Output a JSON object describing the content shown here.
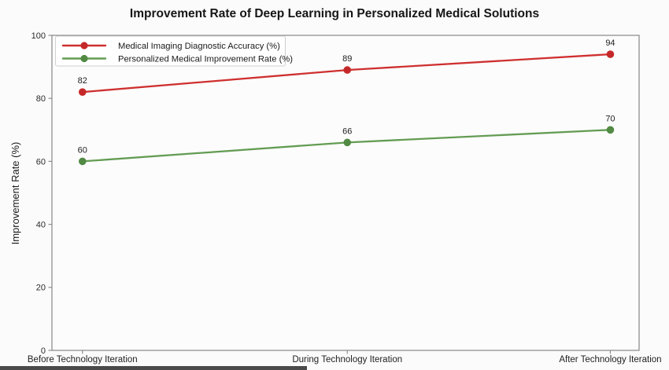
{
  "title": "Improvement Rate of Deep Learning in Personalized Medical Solutions",
  "chart_data": {
    "type": "line",
    "title": "Improvement Rate of Deep Learning in Personalized Medical Solutions",
    "xlabel": "",
    "ylabel": "Improvement Rate (%)",
    "categories": [
      "Before Technology Iteration",
      "During Technology Iteration",
      "After Technology Iteration"
    ],
    "series": [
      {
        "name": "Medical Imaging Diagnostic Accuracy (%)",
        "values": [
          82,
          89,
          94
        ],
        "color": "#cf3030",
        "marker_color": "#c52828"
      },
      {
        "name": "Personalized Medical Improvement Rate (%)",
        "values": [
          60,
          66,
          70
        ],
        "color": "#639c53",
        "marker_color": "#528a44"
      }
    ],
    "point_labels": [
      [
        "82",
        "89",
        "94"
      ],
      [
        "60",
        "66",
        "70"
      ]
    ],
    "ylim": [
      0,
      100
    ],
    "yticks": [
      0,
      20,
      40,
      60,
      80,
      100
    ],
    "grid": false,
    "legend_position": "upper-left",
    "colors": {
      "spine": "#8f8f8f",
      "tick_text": "#2b2b2b",
      "label_text": "#222222",
      "legend_border": "#cfcfcf",
      "legend_bg": "#ffffff",
      "plot_bg": "#fcfcfc"
    }
  }
}
